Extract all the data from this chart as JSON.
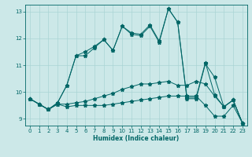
{
  "xlabel": "Humidex (Indice chaleur)",
  "background_color": "#cce8e8",
  "line_color": "#006666",
  "grid_color": "#aad4d4",
  "xlim": [
    -0.5,
    23.5
  ],
  "ylim": [
    8.75,
    13.25
  ],
  "yticks": [
    9,
    10,
    11,
    12,
    13
  ],
  "xticks": [
    0,
    1,
    2,
    3,
    4,
    5,
    6,
    7,
    8,
    9,
    10,
    11,
    12,
    13,
    14,
    15,
    16,
    17,
    18,
    19,
    20,
    21,
    22,
    23
  ],
  "series": [
    [
      9.75,
      9.55,
      9.35,
      9.55,
      9.45,
      9.5,
      9.5,
      9.5,
      9.5,
      9.55,
      9.6,
      9.65,
      9.7,
      9.75,
      9.8,
      9.85,
      9.85,
      9.85,
      9.85,
      9.5,
      9.1,
      9.1,
      9.5,
      8.85
    ],
    [
      9.75,
      9.55,
      9.35,
      9.55,
      9.55,
      9.6,
      9.65,
      9.75,
      9.85,
      9.95,
      10.1,
      10.2,
      10.3,
      10.3,
      10.35,
      10.4,
      10.25,
      10.25,
      10.4,
      10.3,
      9.85,
      9.45,
      9.7,
      8.85
    ],
    [
      9.75,
      9.55,
      9.35,
      9.6,
      10.25,
      11.35,
      11.35,
      11.65,
      11.95,
      11.55,
      12.45,
      12.15,
      12.1,
      12.45,
      11.85,
      13.1,
      12.6,
      9.75,
      9.75,
      11.05,
      10.55,
      9.45,
      9.7,
      8.85
    ],
    [
      9.75,
      9.55,
      9.35,
      9.6,
      10.25,
      11.35,
      11.5,
      11.7,
      11.95,
      11.55,
      12.45,
      12.2,
      12.15,
      12.5,
      11.9,
      13.1,
      12.6,
      9.8,
      9.8,
      11.1,
      9.9,
      9.45,
      9.7,
      8.85
    ]
  ]
}
